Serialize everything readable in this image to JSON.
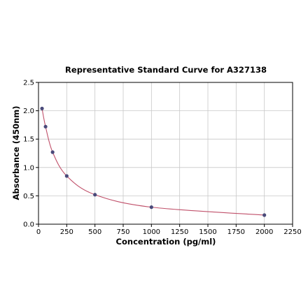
{
  "chart_data": {
    "type": "scatter",
    "title": "Representative Standard Curve for A327138",
    "xlabel": "Concentration (pg/ml)",
    "ylabel": "Absorbance (450nm)",
    "xlim": [
      0,
      2250
    ],
    "ylim": [
      0,
      2.5
    ],
    "xticks": [
      0,
      250,
      500,
      750,
      1000,
      1250,
      1500,
      1750,
      2000,
      2250
    ],
    "yticks": [
      0.0,
      0.5,
      1.0,
      1.5,
      2.0,
      2.5
    ],
    "xtick_labels": [
      "0",
      "250",
      "500",
      "750",
      "1000",
      "1250",
      "1500",
      "1750",
      "2000",
      "2250"
    ],
    "ytick_labels": [
      "0.0",
      "0.5",
      "1.0",
      "1.5",
      "2.0",
      "2.5"
    ],
    "grid": true,
    "series": [
      {
        "x": [
          31.25,
          62.5,
          125,
          250,
          500,
          1000,
          2000
        ],
        "y": [
          2.04,
          1.72,
          1.27,
          0.85,
          0.52,
          0.3,
          0.16
        ],
        "marker_color": "#4a4a7a",
        "line_color": "#c0506a",
        "fit": "smooth"
      }
    ]
  }
}
